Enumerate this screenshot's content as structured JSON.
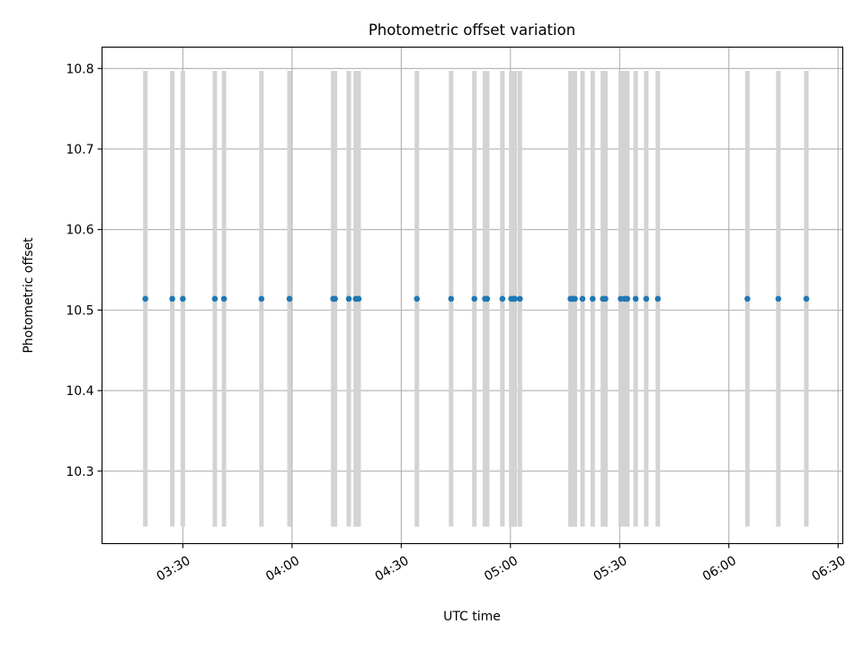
{
  "chart_data": {
    "type": "scatter",
    "title": "Photometric offset variation",
    "xlabel": "UTC time",
    "ylabel": "Photometric offset",
    "x_tick_labels": [
      "03:30",
      "04:00",
      "04:30",
      "05:00",
      "05:30",
      "06:00",
      "06:30"
    ],
    "x_tick_minutes": [
      210,
      240,
      270,
      300,
      330,
      360,
      390
    ],
    "y_tick_labels": [
      "10.3",
      "10.4",
      "10.5",
      "10.6",
      "10.7",
      "10.8"
    ],
    "y_ticks": [
      10.3,
      10.4,
      10.5,
      10.6,
      10.7,
      10.8
    ],
    "xlim_minutes": [
      187.8,
      391.3
    ],
    "ylim": [
      10.21,
      10.8265
    ],
    "grid": true,
    "series": [
      {
        "color": "#1f77b4",
        "x_time_minutes": [
          199.7,
          207.1,
          210.0,
          218.8,
          221.3,
          231.6,
          239.3,
          251.3,
          251.8,
          255.6,
          257.5,
          258.3,
          274.3,
          283.7,
          290.1,
          293.0,
          293.6,
          297.8,
          300.2,
          300.8,
          301.2,
          302.6,
          316.5,
          317.0,
          317.7,
          319.8,
          322.6,
          325.4,
          326.1,
          330.3,
          331.4,
          332.1,
          334.4,
          337.3,
          340.5,
          365.1,
          373.6,
          381.3
        ],
        "y": [
          10.514,
          10.514,
          10.514,
          10.514,
          10.514,
          10.514,
          10.514,
          10.514,
          10.514,
          10.514,
          10.514,
          10.514,
          10.514,
          10.514,
          10.514,
          10.514,
          10.514,
          10.514,
          10.514,
          10.514,
          10.514,
          10.514,
          10.514,
          10.514,
          10.514,
          10.514,
          10.514,
          10.514,
          10.514,
          10.514,
          10.514,
          10.514,
          10.514,
          10.514,
          10.514,
          10.514,
          10.514,
          10.514
        ],
        "error_y": [
          0.283,
          0.283,
          0.283,
          0.283,
          0.283,
          0.283,
          0.283,
          0.283,
          0.283,
          0.283,
          0.283,
          0.283,
          0.283,
          0.283,
          0.283,
          0.283,
          0.283,
          0.283,
          0.283,
          0.283,
          0.283,
          0.283,
          0.283,
          0.283,
          0.283,
          0.283,
          0.283,
          0.283,
          0.283,
          0.283,
          0.283,
          0.283,
          0.283,
          0.283,
          0.283,
          0.283,
          0.283,
          0.283
        ],
        "error_color": "#d3d3d3"
      }
    ]
  }
}
